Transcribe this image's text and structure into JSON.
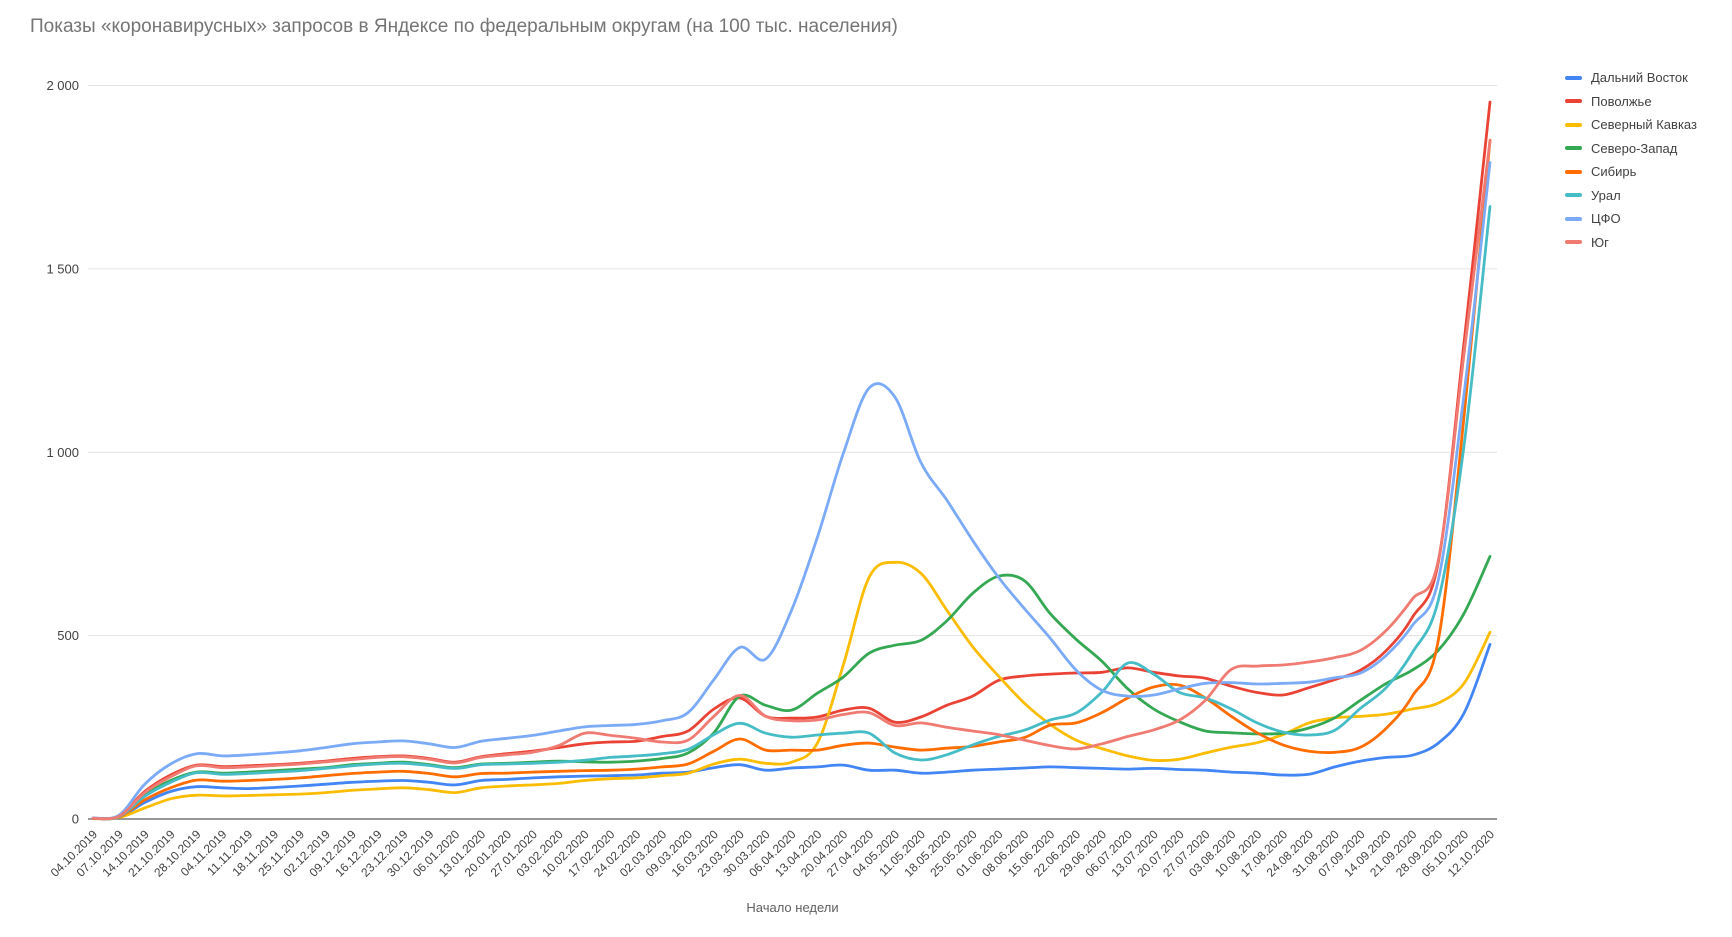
{
  "chart_data": {
    "type": "line",
    "title": "Показы «коронавирусных» запросов в Яндексе по федеральным округам (на 100 тыс. населения)",
    "xlabel": "Начало недели",
    "ylabel": "",
    "ylim": [
      0,
      2000
    ],
    "grid": true,
    "legend_position": "right",
    "y_ticks": [
      {
        "value": 0,
        "label": "0"
      },
      {
        "value": 500,
        "label": "500"
      },
      {
        "value": 1000,
        "label": "1 000"
      },
      {
        "value": 1500,
        "label": "1 500"
      },
      {
        "value": 2000,
        "label": "2 000"
      }
    ],
    "x": [
      "04.10.2019",
      "07.10.2019",
      "14.10.2019",
      "21.10.2019",
      "28.10.2019",
      "04.11.2019",
      "11.11.2019",
      "18.11.2019",
      "25.11.2019",
      "02.12.2019",
      "09.12.2019",
      "16.12.2019",
      "23.12.2019",
      "30.12.2019",
      "06.01.2020",
      "13.01.2020",
      "20.01.2020",
      "27.01.2020",
      "03.02.2020",
      "10.02.2020",
      "17.02.2020",
      "24.02.2020",
      "02.03.2020",
      "09.03.2020",
      "16.03.2020",
      "23.03.2020",
      "30.03.2020",
      "06.04.2020",
      "13.04.2020",
      "20.04.2020",
      "27.04.2020",
      "04.05.2020",
      "11.05.2020",
      "18.05.2020",
      "25.05.2020",
      "01.06.2020",
      "08.06.2020",
      "15.06.2020",
      "22.06.2020",
      "29.06.2020",
      "06.07.2020",
      "13.07.2020",
      "20.07.2020",
      "27.07.2020",
      "03.08.2020",
      "10.08.2020",
      "17.08.2020",
      "24.08.2020",
      "31.08.2020",
      "07.09.2020",
      "14.09.2020",
      "21.09.2020",
      "28.09.2020",
      "05.10.2020",
      "12.10.2020"
    ],
    "series": [
      {
        "key": "far-east",
        "name": "Дальний Восток",
        "color": "#4285F4",
        "values": [
          2,
          5,
          45,
          75,
          88,
          85,
          83,
          86,
          90,
          95,
          100,
          103,
          105,
          100,
          93,
          105,
          108,
          112,
          115,
          117,
          118,
          120,
          125,
          128,
          140,
          148,
          133,
          139,
          142,
          147,
          133,
          133,
          125,
          128,
          133,
          136,
          139,
          142,
          140,
          138,
          136,
          138,
          135,
          133,
          128,
          125,
          120,
          122,
          142,
          158,
          168,
          174,
          207,
          289,
          476
        ]
      },
      {
        "key": "volga",
        "name": "Поволжье",
        "color": "#EA4335",
        "values": [
          2,
          8,
          75,
          120,
          147,
          143,
          145,
          148,
          152,
          158,
          165,
          170,
          172,
          165,
          155,
          170,
          178,
          185,
          195,
          205,
          210,
          212,
          225,
          240,
          300,
          330,
          280,
          275,
          278,
          297,
          302,
          264,
          278,
          310,
          335,
          378,
          390,
          395,
          398,
          400,
          412,
          400,
          390,
          384,
          362,
          345,
          338,
          358,
          380,
          406,
          460,
          550,
          700,
          1300,
          1955
        ]
      },
      {
        "key": "north-caucasus",
        "name": "Северный Кавказ",
        "color": "#FBBC04",
        "values": [
          1,
          4,
          30,
          55,
          65,
          63,
          64,
          66,
          68,
          72,
          78,
          82,
          85,
          80,
          72,
          85,
          90,
          93,
          97,
          105,
          110,
          112,
          118,
          125,
          150,
          163,
          152,
          155,
          207,
          419,
          659,
          700,
          670,
          570,
          470,
          390,
          316,
          258,
          215,
          192,
          172,
          160,
          163,
          180,
          196,
          208,
          230,
          262,
          276,
          280,
          286,
          300,
          316,
          370,
          509
        ]
      },
      {
        "key": "north-west",
        "name": "Северо-Запад",
        "color": "#34A853",
        "values": [
          2,
          6,
          65,
          105,
          128,
          125,
          128,
          132,
          136,
          140,
          148,
          152,
          155,
          148,
          140,
          150,
          152,
          155,
          158,
          156,
          155,
          158,
          165,
          180,
          235,
          335,
          310,
          297,
          343,
          387,
          452,
          474,
          487,
          540,
          615,
          662,
          650,
          560,
          490,
          430,
          355,
          300,
          265,
          240,
          235,
          232,
          234,
          248,
          276,
          324,
          370,
          406,
          460,
          561,
          716
        ]
      },
      {
        "key": "siberia",
        "name": "Сибирь",
        "color": "#FF6D01",
        "values": [
          1,
          5,
          52,
          85,
          106,
          103,
          105,
          108,
          112,
          118,
          124,
          128,
          130,
          124,
          115,
          124,
          125,
          128,
          130,
          132,
          133,
          136,
          142,
          150,
          185,
          218,
          188,
          188,
          188,
          201,
          207,
          196,
          188,
          193,
          198,
          210,
          222,
          256,
          262,
          290,
          330,
          360,
          365,
          330,
          280,
          235,
          202,
          185,
          182,
          196,
          248,
          335,
          487,
          1100,
          1851
        ]
      },
      {
        "key": "ural",
        "name": "Урал",
        "color": "#46BDC6",
        "values": [
          2,
          6,
          62,
          100,
          126,
          122,
          124,
          128,
          132,
          138,
          145,
          150,
          152,
          146,
          138,
          148,
          150,
          152,
          155,
          160,
          168,
          172,
          178,
          190,
          230,
          261,
          234,
          223,
          229,
          234,
          234,
          180,
          161,
          175,
          202,
          225,
          242,
          270,
          289,
          346,
          425,
          395,
          345,
          330,
          300,
          262,
          237,
          229,
          242,
          302,
          359,
          454,
          596,
          1020,
          1670
        ]
      },
      {
        "key": "cfo",
        "name": "ЦФО",
        "color": "#7BAAF7",
        "values": [
          3,
          10,
          95,
          150,
          178,
          172,
          175,
          180,
          186,
          195,
          205,
          210,
          213,
          205,
          195,
          212,
          220,
          228,
          240,
          251,
          255,
          258,
          268,
          290,
          380,
          468,
          436,
          569,
          768,
          996,
          1175,
          1150,
          972,
          870,
          760,
          659,
          574,
          493,
          406,
          351,
          335,
          338,
          355,
          370,
          372,
          368,
          370,
          373,
          385,
          398,
          447,
          528,
          651,
          1160,
          1790
        ]
      },
      {
        "key": "yug",
        "name": "Юг",
        "color": "#F07B72",
        "values": [
          2,
          7,
          72,
          115,
          145,
          140,
          142,
          146,
          150,
          156,
          162,
          168,
          170,
          163,
          153,
          168,
          175,
          182,
          200,
          234,
          228,
          220,
          210,
          215,
          280,
          337,
          280,
          268,
          270,
          285,
          290,
          255,
          262,
          250,
          240,
          230,
          215,
          200,
          191,
          205,
          225,
          243,
          270,
          324,
          408,
          417,
          420,
          428,
          440,
          460,
          515,
          600,
          705,
          1270,
          1850
        ]
      }
    ]
  }
}
